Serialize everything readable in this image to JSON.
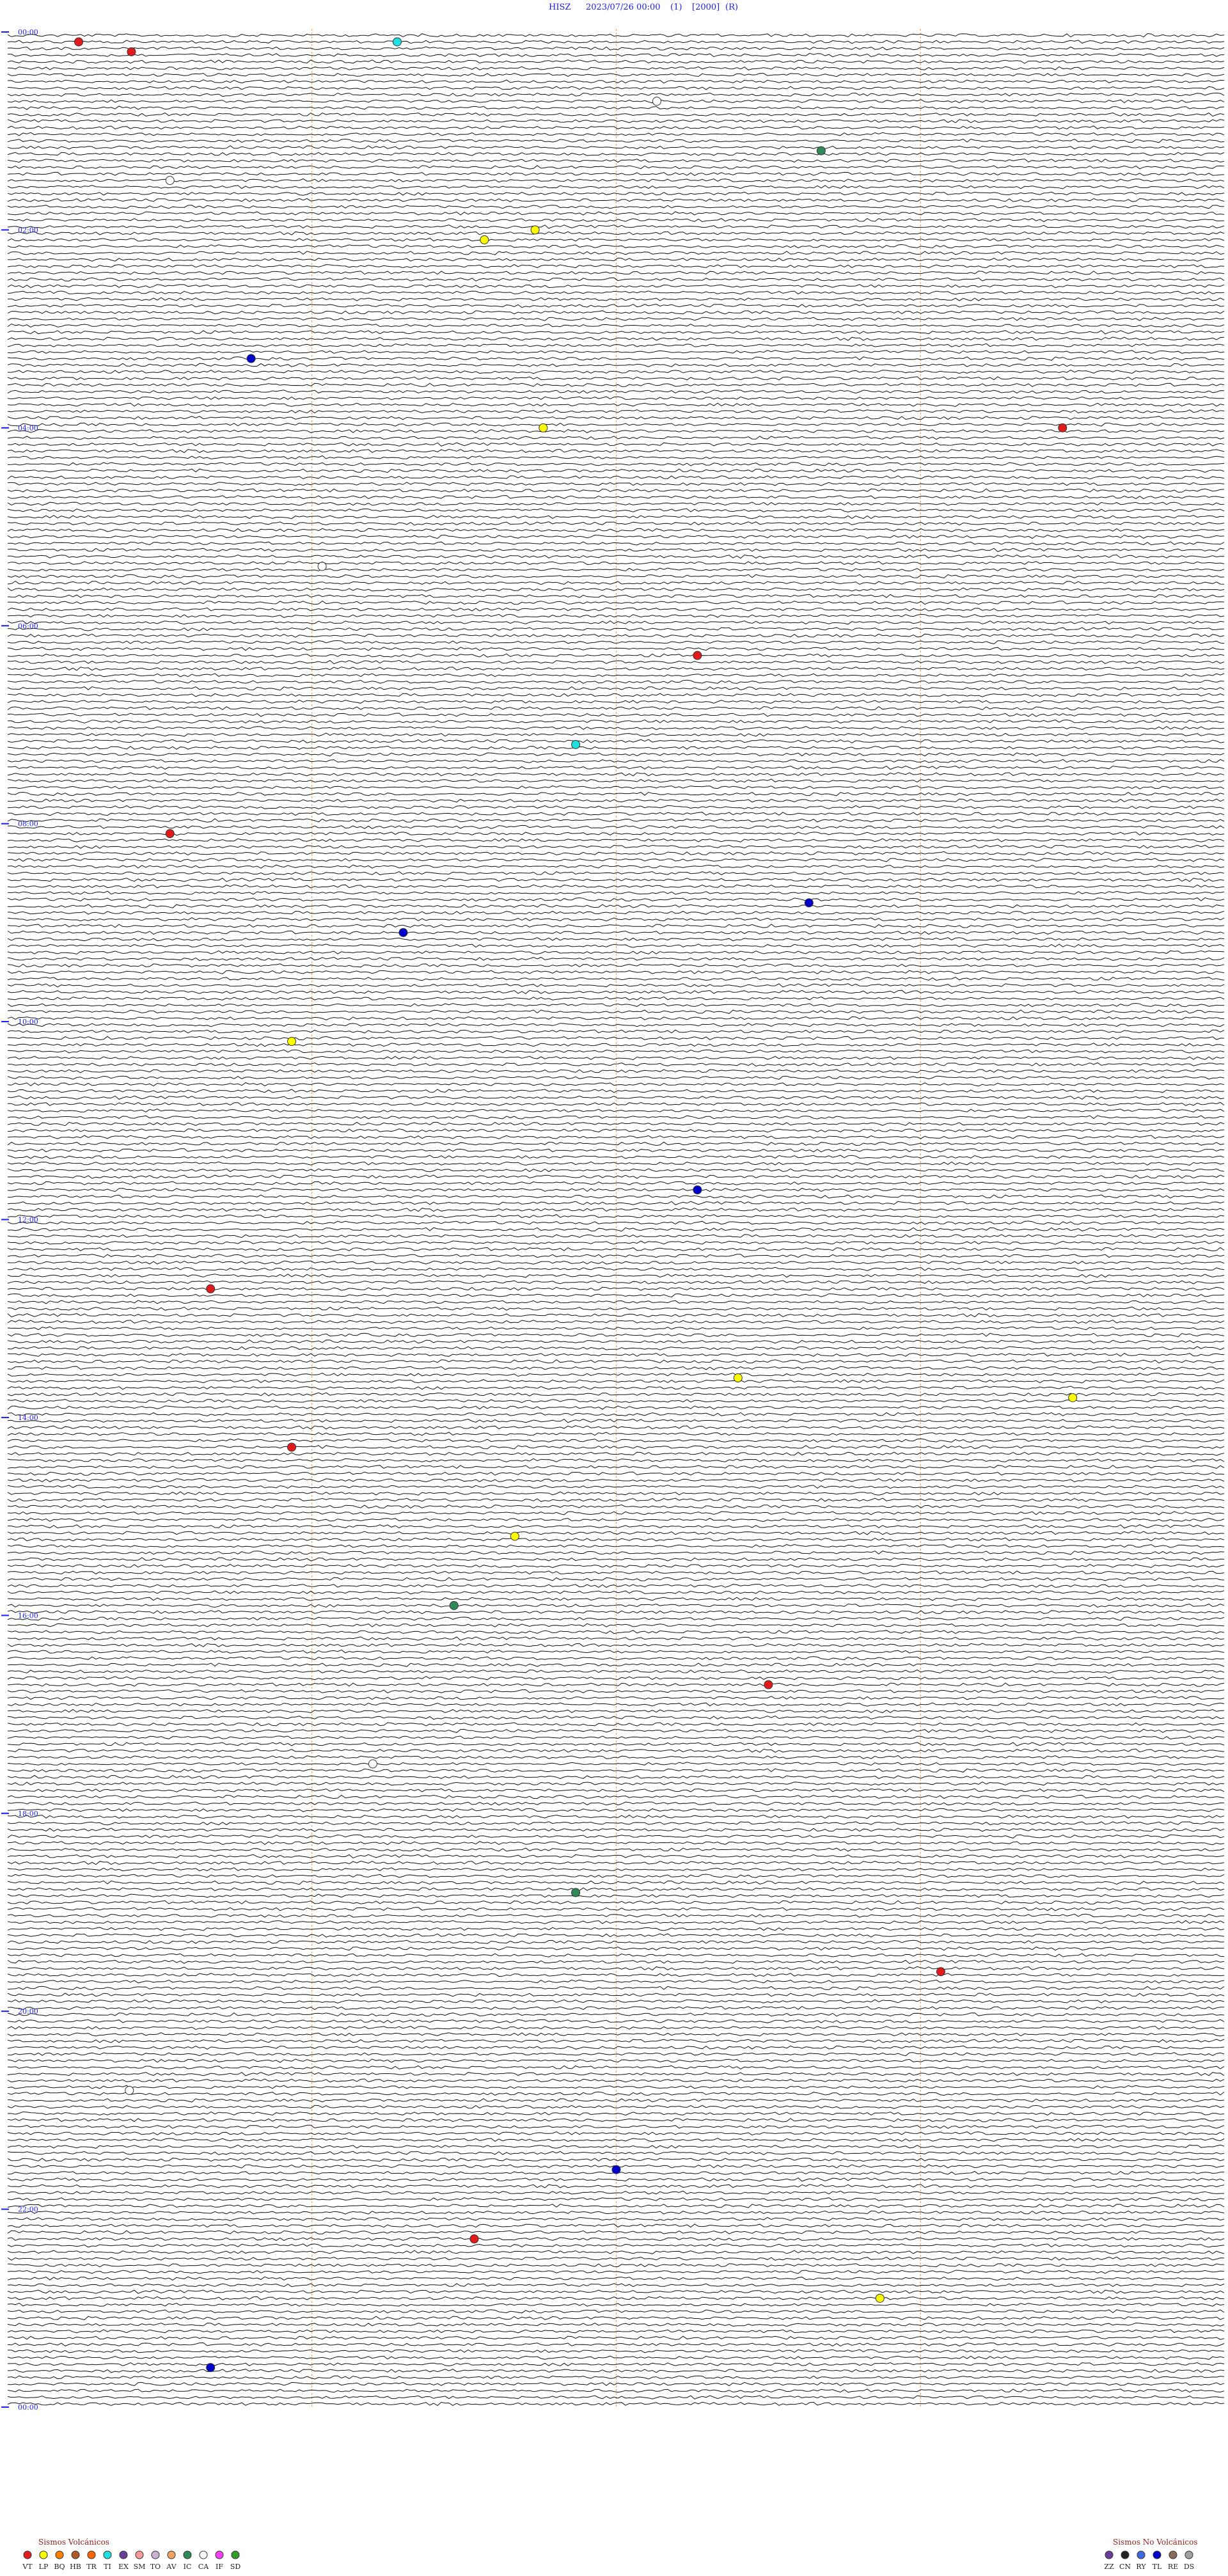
{
  "header": {
    "station": "HISZ",
    "datetime": "2023/07/26 00:00",
    "scale": "(1)",
    "gain": "[2000]",
    "flag": "(R)"
  },
  "chart_data": {
    "type": "seismogram-helicorder",
    "rows_per_hour": 15,
    "total_hours": 24,
    "hour_labels": [
      "00:00",
      "02:00",
      "04:00",
      "06:00",
      "08:00",
      "10:00",
      "12:00",
      "14:00",
      "16:00",
      "18:00",
      "20:00",
      "22:00",
      "00:00"
    ],
    "hour_label_every": 2,
    "minute_markers": [
      15,
      30,
      45
    ],
    "marker_colors": {
      "VT": "#e31a1c",
      "LP": "#ffff00",
      "BQ": "#ff7f00",
      "HB": "#b15928",
      "TR": "#ff6600",
      "TI": "#1ee0e0",
      "EX": "#6a3d9a",
      "SM": "#fb9a99",
      "TO": "#cab2d6",
      "AV": "#f4a460",
      "IC": "#2e8b57",
      "CA": "#ffffff",
      "IF": "#fb40fb",
      "SD": "#33a02c",
      "ZZ": "#6a3d9a",
      "CN": "#222222",
      "RY": "#4169e1",
      "TL": "#0000cd",
      "RE": "#8b6c5c",
      "DS": "#a0a0a0"
    },
    "events": [
      {
        "hour": 0.1,
        "minute": 3.5,
        "type": "VT"
      },
      {
        "hour": 0.1,
        "minute": 19.2,
        "type": "TI"
      },
      {
        "hour": 0.2,
        "minute": 6.1,
        "type": "VT"
      },
      {
        "hour": 0.7,
        "minute": 32.0,
        "type": "CA"
      },
      {
        "hour": 1.2,
        "minute": 40.1,
        "type": "IC"
      },
      {
        "hour": 1.5,
        "minute": 8.0,
        "type": "CA"
      },
      {
        "hour": 2.0,
        "minute": 26.0,
        "type": "LP"
      },
      {
        "hour": 2.1,
        "minute": 23.5,
        "type": "LP"
      },
      {
        "hour": 3.3,
        "minute": 12.0,
        "type": "TL"
      },
      {
        "hour": 4.0,
        "minute": 26.4,
        "type": "LP"
      },
      {
        "hour": 4.0,
        "minute": 52.0,
        "type": "VT"
      },
      {
        "hour": 5.4,
        "minute": 15.5,
        "type": "CA"
      },
      {
        "hour": 6.3,
        "minute": 34.0,
        "type": "VT"
      },
      {
        "hour": 7.2,
        "minute": 28.0,
        "type": "TI"
      },
      {
        "hour": 8.1,
        "minute": 8.0,
        "type": "VT"
      },
      {
        "hour": 8.8,
        "minute": 39.5,
        "type": "TL"
      },
      {
        "hour": 9.1,
        "minute": 19.5,
        "type": "TL"
      },
      {
        "hour": 10.2,
        "minute": 14.0,
        "type": "LP"
      },
      {
        "hour": 11.7,
        "minute": 34.0,
        "type": "TL"
      },
      {
        "hour": 12.7,
        "minute": 10.0,
        "type": "VT"
      },
      {
        "hour": 13.6,
        "minute": 36.0,
        "type": "LP"
      },
      {
        "hour": 13.8,
        "minute": 52.5,
        "type": "LP"
      },
      {
        "hour": 14.3,
        "minute": 14.0,
        "type": "VT"
      },
      {
        "hour": 15.2,
        "minute": 25.0,
        "type": "LP"
      },
      {
        "hour": 15.9,
        "minute": 22.0,
        "type": "IC"
      },
      {
        "hour": 16.7,
        "minute": 37.5,
        "type": "VT"
      },
      {
        "hour": 17.5,
        "minute": 18.0,
        "type": "CA"
      },
      {
        "hour": 18.8,
        "minute": 28.0,
        "type": "IC"
      },
      {
        "hour": 19.6,
        "minute": 46.0,
        "type": "VT"
      },
      {
        "hour": 20.8,
        "minute": 6.0,
        "type": "CA"
      },
      {
        "hour": 21.6,
        "minute": 30.0,
        "type": "TL"
      },
      {
        "hour": 22.3,
        "minute": 23.0,
        "type": "VT"
      },
      {
        "hour": 22.9,
        "minute": 43.0,
        "type": "LP"
      },
      {
        "hour": 23.6,
        "minute": 10.0,
        "type": "TL"
      }
    ]
  },
  "legend": {
    "volcanic": {
      "title": "Sismos Volcánicos",
      "codes": [
        "VT",
        "LP",
        "BQ",
        "HB",
        "TR",
        "TI",
        "EX",
        "SM",
        "TO",
        "AV",
        "IC",
        "CA",
        "IF",
        "SD"
      ]
    },
    "non_volcanic": {
      "title": "Sismos No Volcánicos",
      "codes": [
        "ZZ",
        "CN",
        "RY",
        "TL",
        "RE",
        "DS"
      ]
    }
  }
}
